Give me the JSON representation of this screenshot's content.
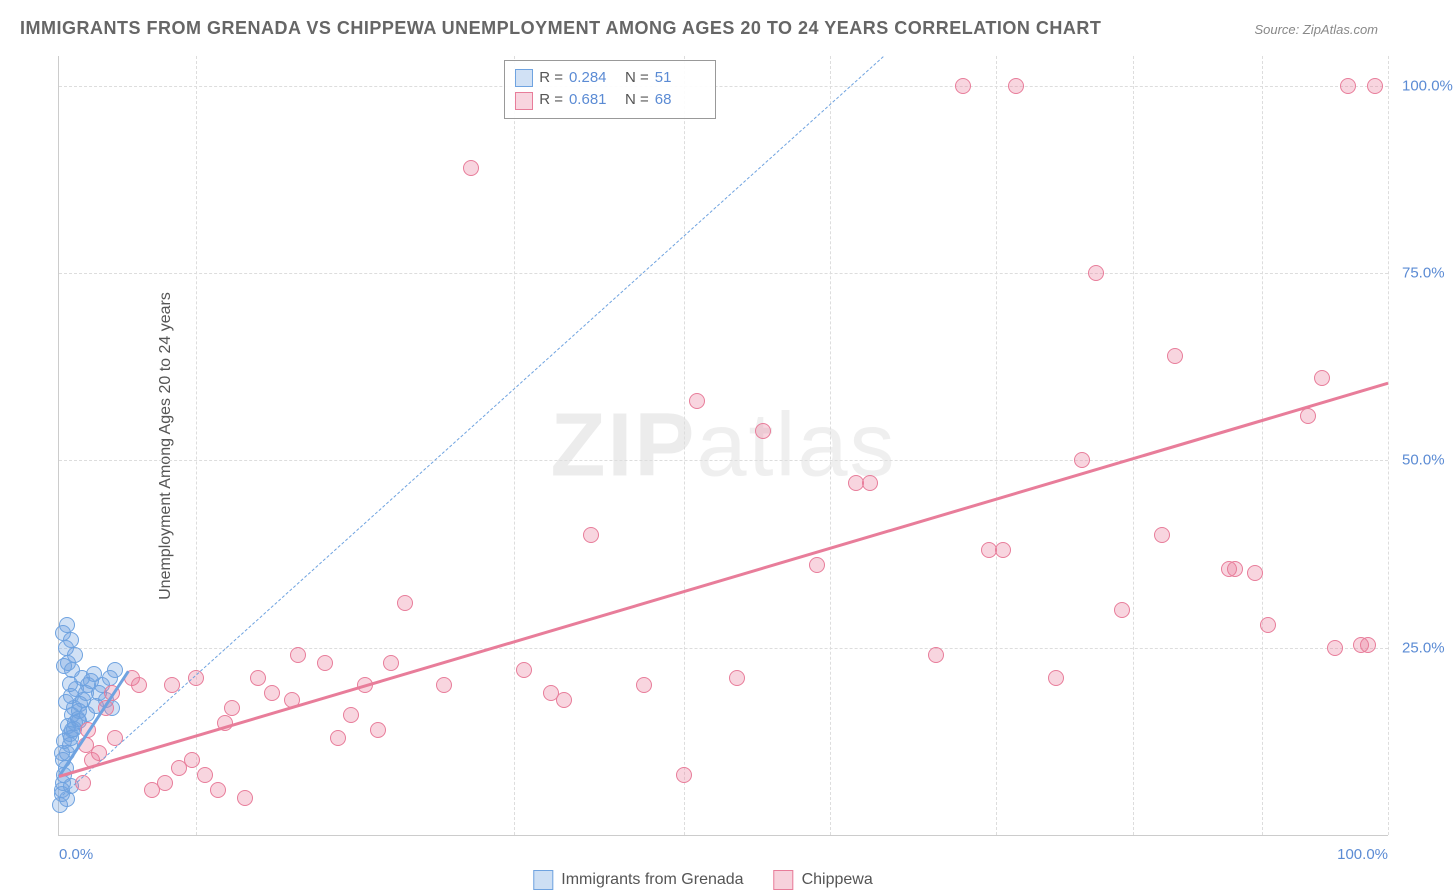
{
  "title": "IMMIGRANTS FROM GRENADA VS CHIPPEWA UNEMPLOYMENT AMONG AGES 20 TO 24 YEARS CORRELATION CHART",
  "source": "Source: ZipAtlas.com",
  "ylabel": "Unemployment Among Ages 20 to 24 years",
  "watermark_a": "ZIP",
  "watermark_b": "atlas",
  "chart": {
    "type": "scatter",
    "xlim": [
      0,
      100
    ],
    "ylim": [
      0,
      104
    ],
    "xticks": [
      0,
      100
    ],
    "xtick_labels": [
      "0.0%",
      "100.0%"
    ],
    "yticks": [
      25,
      50,
      75,
      100
    ],
    "ytick_labels": [
      "25.0%",
      "50.0%",
      "75.0%",
      "100.0%"
    ],
    "vgridlines": [
      10.3,
      34.2,
      47,
      58,
      70.5,
      80.8,
      90.5,
      100
    ],
    "grid_color": "#dddddd",
    "background_color": "#ffffff",
    "axis_color": "#cccccc",
    "tick_color": "#5b8bd4",
    "marker_radius": 8,
    "marker_opacity": 0.32,
    "stats_box": {
      "left_pct": 33.5,
      "top_pct": 0.5
    }
  },
  "series": [
    {
      "name": "Immigrants from Grenada",
      "color": "#6fa3e0",
      "fill": "rgba(111,163,224,0.32)",
      "stroke": "#6fa3e0",
      "R": "0.284",
      "N": "51",
      "trend": {
        "x1": 0,
        "y1": 8,
        "x2": 5.2,
        "y2": 22,
        "dashed": false,
        "width": 3
      },
      "diagonal": {
        "x1": 0,
        "y1": 5,
        "x2": 62,
        "y2": 104,
        "dashed": true,
        "width": 1.5
      },
      "points": [
        [
          0.1,
          4
        ],
        [
          0.2,
          6
        ],
        [
          0.3,
          7
        ],
        [
          0.4,
          8
        ],
        [
          0.5,
          9
        ],
        [
          0.3,
          10
        ],
        [
          0.6,
          11
        ],
        [
          0.8,
          12
        ],
        [
          0.9,
          13
        ],
        [
          1.0,
          14
        ],
        [
          0.7,
          14.5
        ],
        [
          1.2,
          15
        ],
        [
          1.4,
          15.5
        ],
        [
          1.0,
          16
        ],
        [
          1.5,
          16.5
        ],
        [
          1.1,
          17
        ],
        [
          1.6,
          17.5
        ],
        [
          0.5,
          17.8
        ],
        [
          1.8,
          18
        ],
        [
          0.9,
          18.5
        ],
        [
          2.0,
          19
        ],
        [
          1.3,
          19.5
        ],
        [
          2.2,
          20
        ],
        [
          0.8,
          20.2
        ],
        [
          2.4,
          20.5
        ],
        [
          1.7,
          21
        ],
        [
          2.6,
          21.5
        ],
        [
          1.0,
          22
        ],
        [
          0.4,
          22.5
        ],
        [
          0.7,
          23
        ],
        [
          3.0,
          19
        ],
        [
          3.2,
          20
        ],
        [
          3.5,
          18
        ],
        [
          3.8,
          21
        ],
        [
          4.0,
          17
        ],
        [
          4.2,
          22
        ],
        [
          1.2,
          24
        ],
        [
          0.5,
          25
        ],
        [
          0.9,
          26
        ],
        [
          0.3,
          27
        ],
        [
          0.6,
          28
        ],
        [
          0.2,
          11
        ],
        [
          0.4,
          12.5
        ],
        [
          0.8,
          13.5
        ],
        [
          1.1,
          14.2
        ],
        [
          1.5,
          15.2
        ],
        [
          2.1,
          16.2
        ],
        [
          2.8,
          17.2
        ],
        [
          0.6,
          4.8
        ],
        [
          0.2,
          5.5
        ],
        [
          0.9,
          6.5
        ]
      ]
    },
    {
      "name": "Chippewa",
      "color": "#e87d9a",
      "fill": "rgba(232,125,154,0.32)",
      "stroke": "#e87d9a",
      "R": "0.681",
      "N": "68",
      "trend": {
        "x1": 0,
        "y1": 8,
        "x2": 100,
        "y2": 60.5,
        "dashed": false,
        "width": 3
      },
      "points": [
        [
          1.8,
          7
        ],
        [
          2,
          12
        ],
        [
          2.2,
          14
        ],
        [
          2.5,
          10
        ],
        [
          3,
          11
        ],
        [
          3.5,
          17
        ],
        [
          4,
          19
        ],
        [
          4.2,
          13
        ],
        [
          5.5,
          21
        ],
        [
          6,
          20
        ],
        [
          7,
          6
        ],
        [
          8,
          7
        ],
        [
          8.5,
          20
        ],
        [
          9,
          9
        ],
        [
          10,
          10
        ],
        [
          10.3,
          21
        ],
        [
          11,
          8
        ],
        [
          12,
          6
        ],
        [
          12.5,
          15
        ],
        [
          13,
          17
        ],
        [
          14,
          5
        ],
        [
          15,
          21
        ],
        [
          16,
          19
        ],
        [
          17.5,
          18
        ],
        [
          18,
          24
        ],
        [
          20,
          23
        ],
        [
          21,
          13
        ],
        [
          22,
          16
        ],
        [
          23,
          20
        ],
        [
          24,
          14
        ],
        [
          25,
          23
        ],
        [
          26,
          31
        ],
        [
          29,
          20
        ],
        [
          31,
          89
        ],
        [
          35,
          22
        ],
        [
          37,
          19
        ],
        [
          38,
          18
        ],
        [
          40,
          40
        ],
        [
          44,
          20
        ],
        [
          47,
          8
        ],
        [
          48,
          58
        ],
        [
          51,
          21
        ],
        [
          53,
          54
        ],
        [
          57,
          36
        ],
        [
          60,
          47
        ],
        [
          61,
          47
        ],
        [
          66,
          24
        ],
        [
          68,
          100
        ],
        [
          70,
          38
        ],
        [
          71,
          38
        ],
        [
          72,
          100
        ],
        [
          75,
          21
        ],
        [
          77,
          50
        ],
        [
          78,
          75
        ],
        [
          80,
          30
        ],
        [
          83,
          40
        ],
        [
          84,
          64
        ],
        [
          88,
          35.5
        ],
        [
          90,
          35
        ],
        [
          91,
          28
        ],
        [
          94,
          56
        ],
        [
          95,
          61
        ],
        [
          96,
          25
        ],
        [
          97,
          100
        ],
        [
          98,
          25.3
        ],
        [
          98.5,
          25.3
        ],
        [
          99,
          100
        ],
        [
          88.5,
          35.5
        ]
      ]
    }
  ],
  "bottom_legend": [
    {
      "label": "Immigrants from Grenada",
      "fill": "rgba(111,163,224,0.35)",
      "stroke": "#6fa3e0"
    },
    {
      "label": "Chippewa",
      "fill": "rgba(232,125,154,0.35)",
      "stroke": "#e87d9a"
    }
  ]
}
